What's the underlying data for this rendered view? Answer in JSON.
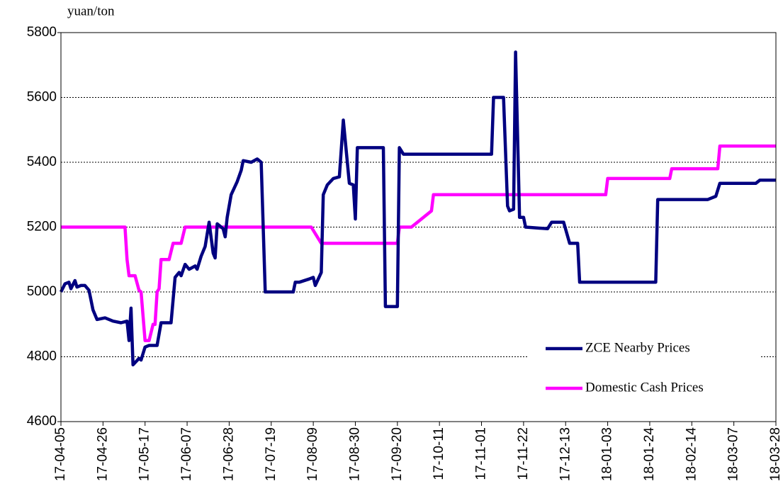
{
  "chart_data": {
    "type": "line",
    "y_label": "yuan/ton",
    "xlim": [
      "17-04-05",
      "18-03-28"
    ],
    "xticks": [
      "17-04-05",
      "17-04-26",
      "17-05-17",
      "17-06-07",
      "17-06-28",
      "17-07-19",
      "17-08-09",
      "17-08-30",
      "17-09-20",
      "17-10-11",
      "17-11-01",
      "17-11-22",
      "17-12-13",
      "18-01-03",
      "18-01-24",
      "18-02-14",
      "18-03-07",
      "18-03-28"
    ],
    "ylim": [
      4600,
      5800
    ],
    "yticks": [
      4600,
      4800,
      5000,
      5200,
      5400,
      5600,
      5800
    ],
    "grid": true,
    "legend": "lower right",
    "series": [
      {
        "name": "Domestic Cash Prices",
        "color": "#ff00ff",
        "x": [
          "17-04-05",
          "17-05-07",
          "17-05-08",
          "17-05-09",
          "17-05-12",
          "17-05-14",
          "17-05-15",
          "17-05-17",
          "17-05-19",
          "17-05-21",
          "17-05-22",
          "17-05-23",
          "17-05-24",
          "17-05-25",
          "17-05-29",
          "17-05-31",
          "17-06-04",
          "17-06-06",
          "17-08-08",
          "17-08-13",
          "17-09-20",
          "17-09-21",
          "17-09-27",
          "17-10-07",
          "17-10-08",
          "18-01-02",
          "18-01-03",
          "18-02-03",
          "18-02-04",
          "18-02-27",
          "18-02-28",
          "18-03-28"
        ],
        "values": [
          5200,
          5200,
          5100,
          5050,
          5050,
          5005,
          5000,
          4850,
          4850,
          4900,
          4900,
          5000,
          5010,
          5100,
          5100,
          5150,
          5150,
          5200,
          5200,
          5150,
          5150,
          5200,
          5200,
          5250,
          5300,
          5300,
          5350,
          5350,
          5380,
          5380,
          5450,
          5450
        ]
      },
      {
        "name": "ZCE Nearby Prices",
        "color": "#000080",
        "x": [
          "17-04-05",
          "17-04-07",
          "17-04-09",
          "17-04-10",
          "17-04-12",
          "17-04-13",
          "17-04-15",
          "17-04-17",
          "17-04-19",
          "17-04-21",
          "17-04-23",
          "17-04-27",
          "17-05-01",
          "17-05-05",
          "17-05-08",
          "17-05-09",
          "17-05-10",
          "17-05-11",
          "17-05-14",
          "17-05-15",
          "17-05-16",
          "17-05-17",
          "17-05-19",
          "17-05-23",
          "17-05-25",
          "17-05-30",
          "17-06-01",
          "17-06-03",
          "17-06-04",
          "17-06-06",
          "17-06-08",
          "17-06-11",
          "17-06-12",
          "17-06-14",
          "17-06-16",
          "17-06-18",
          "17-06-20",
          "17-06-21",
          "17-06-22",
          "17-06-25",
          "17-06-26",
          "17-06-27",
          "17-06-29",
          "17-07-02",
          "17-07-04",
          "17-07-05",
          "17-07-09",
          "17-07-12",
          "17-07-14",
          "17-07-16",
          "17-07-30",
          "17-07-31",
          "17-08-02",
          "17-08-07",
          "17-08-09",
          "17-08-10",
          "17-08-13",
          "17-08-14",
          "17-08-16",
          "17-08-19",
          "17-08-22",
          "17-08-24",
          "17-08-27",
          "17-08-29",
          "17-08-30",
          "17-08-31",
          "17-09-13",
          "17-09-14",
          "17-09-20",
          "17-09-21",
          "17-09-23",
          "17-11-06",
          "17-11-07",
          "17-11-12",
          "17-11-14",
          "17-11-15",
          "17-11-17",
          "17-11-18",
          "17-11-20",
          "17-11-22",
          "17-11-23",
          "17-12-04",
          "17-12-06",
          "17-12-12",
          "17-12-15",
          "17-12-19",
          "17-12-20",
          "18-01-27",
          "18-01-28",
          "18-02-22",
          "18-02-26",
          "18-02-28",
          "18-03-18",
          "18-03-20",
          "18-03-28"
        ],
        "values": [
          5000,
          5025,
          5030,
          5010,
          5035,
          5015,
          5020,
          5020,
          5005,
          4945,
          4915,
          4920,
          4910,
          4905,
          4910,
          4850,
          4950,
          4775,
          4795,
          4790,
          4810,
          4830,
          4835,
          4835,
          4905,
          4905,
          5045,
          5060,
          5050,
          5085,
          5070,
          5080,
          5070,
          5110,
          5140,
          5215,
          5120,
          5105,
          5210,
          5195,
          5170,
          5230,
          5300,
          5340,
          5375,
          5405,
          5400,
          5410,
          5400,
          5000,
          5000,
          5030,
          5030,
          5040,
          5045,
          5020,
          5060,
          5300,
          5330,
          5350,
          5355,
          5530,
          5335,
          5330,
          5225,
          5445,
          5445,
          4955,
          4955,
          5445,
          5425,
          5425,
          5600,
          5600,
          5265,
          5250,
          5255,
          5740,
          5230,
          5230,
          5200,
          5195,
          5215,
          5215,
          5150,
          5150,
          5030,
          5030,
          5285,
          5285,
          5295,
          5335,
          5335,
          5345,
          5345
        ]
      }
    ]
  }
}
